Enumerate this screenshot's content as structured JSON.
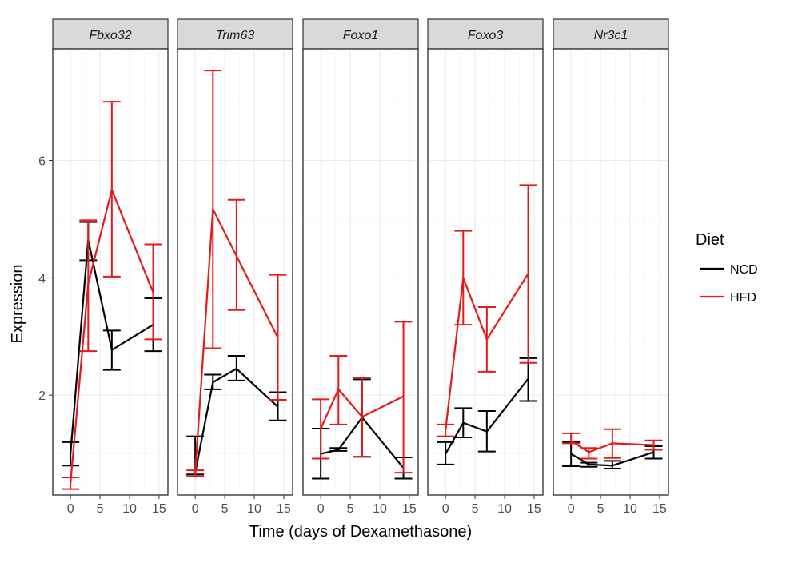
{
  "chart_data": {
    "type": "line",
    "facets": [
      "Fbxo32",
      "Trim63",
      "Foxo1",
      "Foxo3",
      "Nr3c1"
    ],
    "x": [
      0,
      3,
      7,
      14
    ],
    "xlabel": "Time (days of Dexamethasone)",
    "ylabel": "Expression",
    "xlim": [
      -3,
      16.5
    ],
    "ylim": [
      0.3,
      7.9
    ],
    "xticks": [
      0,
      5,
      10,
      15
    ],
    "yticks": [
      2,
      4,
      6
    ],
    "legend": {
      "title": "Diet",
      "position": "right",
      "entries": [
        {
          "name": "NCD",
          "color": "#000000"
        },
        {
          "name": "HFD",
          "color": "#e41a1c"
        }
      ]
    },
    "series": [
      {
        "facet": "Fbxo32",
        "name": "NCD",
        "color": "#000000",
        "values": [
          1.0,
          4.65,
          2.77,
          3.2
        ],
        "lower": [
          0.8,
          4.3,
          2.43,
          2.75
        ],
        "upper": [
          1.2,
          4.95,
          3.1,
          3.65
        ]
      },
      {
        "facet": "Fbxo32",
        "name": "HFD",
        "color": "#e41a1c",
        "values": [
          0.5,
          3.9,
          5.5,
          3.75
        ],
        "lower": [
          0.4,
          2.75,
          4.02,
          2.95
        ],
        "upper": [
          0.6,
          4.98,
          7.0,
          4.57
        ]
      },
      {
        "facet": "Trim63",
        "name": "NCD",
        "color": "#000000",
        "values": [
          0.68,
          2.22,
          2.45,
          1.8
        ],
        "lower": [
          0.65,
          2.1,
          2.25,
          1.57
        ],
        "upper": [
          1.3,
          2.35,
          2.67,
          2.05
        ]
      },
      {
        "facet": "Trim63",
        "name": "HFD",
        "color": "#e41a1c",
        "values": [
          0.68,
          5.17,
          4.37,
          2.98
        ],
        "lower": [
          0.62,
          2.8,
          3.45,
          1.92
        ],
        "upper": [
          0.72,
          7.53,
          5.33,
          4.05
        ]
      },
      {
        "facet": "Foxo1",
        "name": "NCD",
        "color": "#000000",
        "values": [
          1.0,
          1.07,
          1.62,
          0.76
        ],
        "lower": [
          0.58,
          1.05,
          0.95,
          0.58
        ],
        "upper": [
          1.43,
          1.1,
          2.27,
          0.94
        ]
      },
      {
        "facet": "Foxo1",
        "name": "HFD",
        "color": "#e41a1c",
        "values": [
          1.43,
          2.1,
          1.63,
          1.98
        ],
        "lower": [
          0.92,
          1.5,
          0.95,
          0.68
        ],
        "upper": [
          1.93,
          2.67,
          2.3,
          3.25
        ]
      },
      {
        "facet": "Foxo3",
        "name": "NCD",
        "color": "#000000",
        "values": [
          1.0,
          1.53,
          1.38,
          2.28
        ],
        "lower": [
          0.82,
          1.28,
          1.04,
          1.9
        ],
        "upper": [
          1.2,
          1.78,
          1.73,
          2.63
        ]
      },
      {
        "facet": "Foxo3",
        "name": "HFD",
        "color": "#e41a1c",
        "values": [
          1.4,
          4.0,
          2.95,
          4.07
        ],
        "lower": [
          1.3,
          3.2,
          2.4,
          2.55
        ],
        "upper": [
          1.5,
          4.8,
          3.5,
          5.58
        ]
      },
      {
        "facet": "Nr3c1",
        "name": "NCD",
        "color": "#000000",
        "values": [
          1.0,
          0.82,
          0.8,
          1.03
        ],
        "lower": [
          0.79,
          0.78,
          0.75,
          0.92
        ],
        "upper": [
          1.2,
          0.85,
          0.88,
          1.13
        ]
      },
      {
        "facet": "Nr3c1",
        "name": "HFD",
        "color": "#e41a1c",
        "values": [
          1.22,
          1.03,
          1.18,
          1.15
        ],
        "lower": [
          1.18,
          0.92,
          0.93,
          1.07
        ],
        "upper": [
          1.35,
          1.1,
          1.42,
          1.23
        ]
      }
    ]
  }
}
